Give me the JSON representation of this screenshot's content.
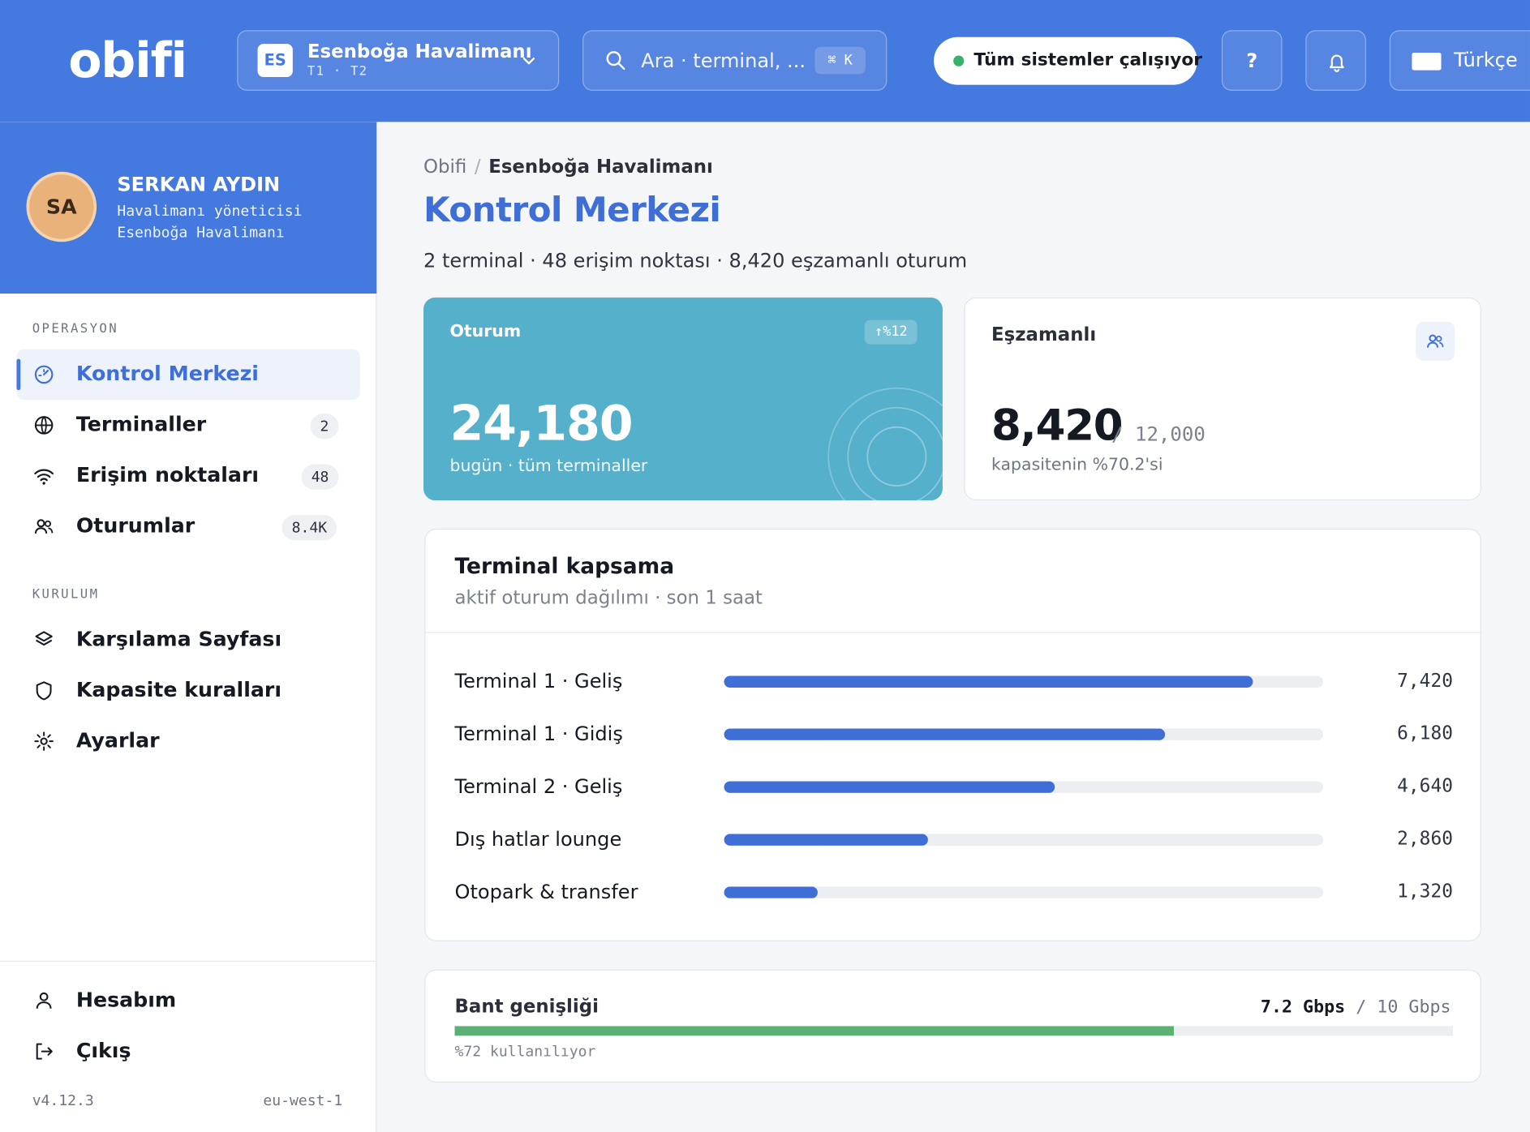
{
  "header": {
    "logo": "obifi",
    "airport_code": "ES",
    "airport_name": "Esenboğa Havalimanı",
    "airport_terminals": "T1 · T2",
    "search_placeholder": "Ara · terminal, ...",
    "search_shortcut": "⌘ K",
    "status_text": "Tüm sistemler çalışıyor",
    "status_color": "#35b36b",
    "help_label": "?",
    "language": "Türkçe"
  },
  "profile": {
    "initials": "SA",
    "name": "SERKAN AYDIN",
    "role": "Havalimanı yöneticisi",
    "airport": "Esenboğa Havalimanı"
  },
  "sidebar": {
    "section_ops": "OPERASYON",
    "section_setup": "KURULUM",
    "ops_items": [
      {
        "label": "Kontrol Merkezi",
        "icon": "dashboard-icon",
        "active": true
      },
      {
        "label": "Terminaller",
        "icon": "globe-icon",
        "badge": "2"
      },
      {
        "label": "Erişim noktaları",
        "icon": "wifi-icon",
        "badge": "48"
      },
      {
        "label": "Oturumlar",
        "icon": "users-icon",
        "badge": "8.4K"
      }
    ],
    "setup_items": [
      {
        "label": "Karşılama Sayfası",
        "icon": "layers-icon"
      },
      {
        "label": "Kapasite kuralları",
        "icon": "shield-icon"
      },
      {
        "label": "Ayarlar",
        "icon": "settings-icon"
      }
    ],
    "footer_items": [
      {
        "label": "Hesabım",
        "icon": "user-icon"
      },
      {
        "label": "Çıkış",
        "icon": "logout-icon"
      }
    ],
    "version": "v4.12.3",
    "region": "eu-west-1"
  },
  "main": {
    "breadcrumb_root": "Obifi",
    "breadcrumb_sep": "/",
    "breadcrumb_current": "Esenboğa Havalimanı",
    "title": "Kontrol Merkezi",
    "subtitle": "2 terminal · 48 erişim noktası · 8,420 eşzamanlı oturum",
    "sessions_card": {
      "title": "Oturum",
      "delta": "↑%12",
      "value": "24,180",
      "sub": "bugün · tüm terminaller"
    },
    "concurrent_card": {
      "title": "Eşzamanlı",
      "value": "8,420",
      "capacity": "/ 12,000",
      "sub": "kapasitenin %70.2'si"
    },
    "coverage": {
      "title": "Terminal kapsama",
      "sub": "aktif oturum dağılımı · son 1 saat",
      "max": 8400,
      "rows": [
        {
          "label": "Terminal 1 · Geliş",
          "value": 7420,
          "display": "7,420"
        },
        {
          "label": "Terminal 1 · Gidiş",
          "value": 6180,
          "display": "6,180"
        },
        {
          "label": "Terminal 2 · Geliş",
          "value": 4640,
          "display": "4,640"
        },
        {
          "label": "Dış hatlar lounge",
          "value": 2860,
          "display": "2,860"
        },
        {
          "label": "Otopark & transfer",
          "value": 1320,
          "display": "1,320"
        }
      ]
    },
    "bandwidth": {
      "title": "Bant genişliği",
      "used": "7.2 Gbps",
      "total": "/ 10 Gbps",
      "percent": 72,
      "sub": "%72 kullanılıyor",
      "bar_color": "#5bb074"
    }
  },
  "colors": {
    "brand": "#4479df",
    "accent_text": "#3f6fd6",
    "sessions_card": "#54b0cb"
  }
}
